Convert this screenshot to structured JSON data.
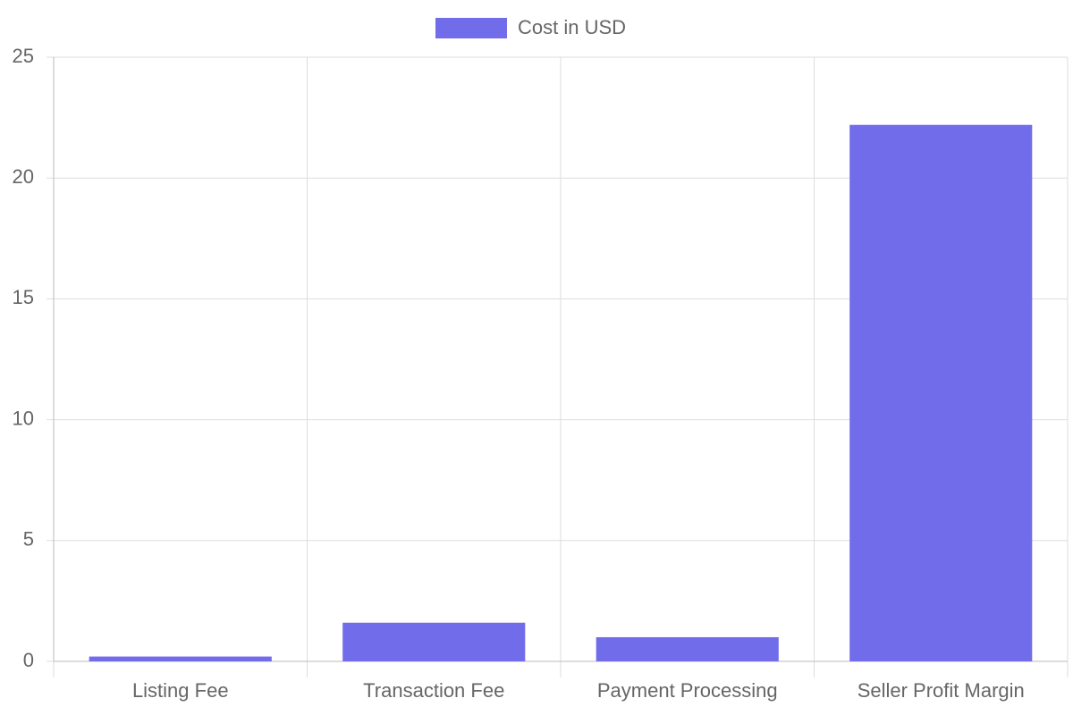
{
  "chart_data": {
    "type": "bar",
    "categories": [
      "Listing Fee",
      "Transaction Fee",
      "Payment Processing",
      "Seller Profit Margin"
    ],
    "series": [
      {
        "name": "Cost in USD",
        "color": "#716cea",
        "values": [
          0.2,
          1.6,
          1.0,
          22.2
        ]
      }
    ],
    "ylim": [
      0,
      25
    ],
    "yticks": [
      0,
      5,
      10,
      15,
      20,
      25
    ],
    "grid": true,
    "legend": "top"
  }
}
